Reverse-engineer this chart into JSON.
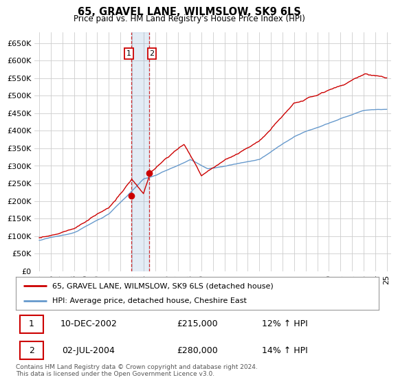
{
  "title": "65, GRAVEL LANE, WILMSLOW, SK9 6LS",
  "subtitle": "Price paid vs. HM Land Registry's House Price Index (HPI)",
  "legend_line1": "65, GRAVEL LANE, WILMSLOW, SK9 6LS (detached house)",
  "legend_line2": "HPI: Average price, detached house, Cheshire East",
  "sale1_label": "1",
  "sale1_date": "10-DEC-2002",
  "sale1_price": "£215,000",
  "sale1_hpi": "12% ↑ HPI",
  "sale2_label": "2",
  "sale2_date": "02-JUL-2004",
  "sale2_price": "£280,000",
  "sale2_hpi": "14% ↑ HPI",
  "footer": "Contains HM Land Registry data © Crown copyright and database right 2024.\nThis data is licensed under the Open Government Licence v3.0.",
  "red_color": "#cc0000",
  "blue_color": "#6699cc",
  "grid_color": "#cccccc",
  "bg_color": "#ffffff",
  "plot_bg": "#ffffff",
  "ylim": [
    0,
    680000
  ],
  "yticks": [
    0,
    50000,
    100000,
    150000,
    200000,
    250000,
    300000,
    350000,
    400000,
    450000,
    500000,
    550000,
    600000,
    650000
  ],
  "ytick_labels": [
    "£0",
    "£50K",
    "£100K",
    "£150K",
    "£200K",
    "£250K",
    "£300K",
    "£350K",
    "£400K",
    "£450K",
    "£500K",
    "£550K",
    "£600K",
    "£650K"
  ],
  "xtick_years": [
    1995,
    1996,
    1997,
    1998,
    1999,
    2000,
    2001,
    2002,
    2003,
    2004,
    2005,
    2006,
    2007,
    2008,
    2009,
    2010,
    2011,
    2012,
    2013,
    2014,
    2015,
    2016,
    2017,
    2018,
    2019,
    2020,
    2021,
    2022,
    2023,
    2024,
    2025
  ],
  "sale1_x": 2002.92,
  "sale1_y": 215000,
  "sale2_x": 2004.5,
  "sale2_y": 280000,
  "vline1_x": 2002.92,
  "vline2_x": 2004.5
}
